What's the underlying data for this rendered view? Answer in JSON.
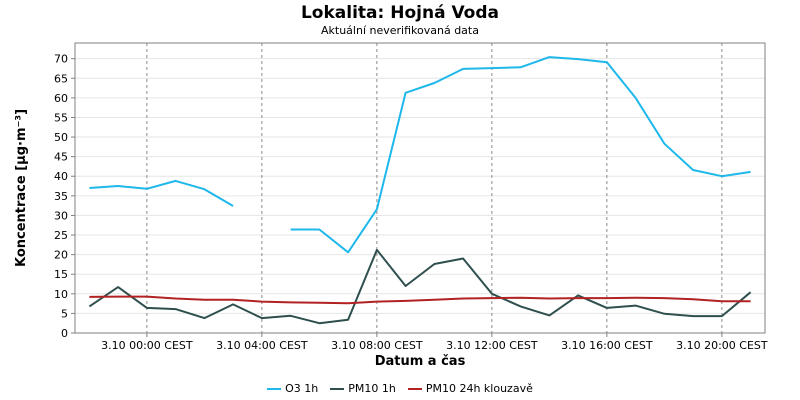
{
  "chart_data": {
    "type": "line",
    "title": "Lokalita: Hojná Voda",
    "subtitle": "Aktuální neverifikovaná data",
    "xlabel": "Datum a čas",
    "ylabel": "Koncentrace [µg·m⁻³]",
    "ylim": [
      0,
      74
    ],
    "yticks": [
      0,
      5,
      10,
      15,
      20,
      25,
      30,
      35,
      40,
      45,
      50,
      55,
      60,
      65,
      70
    ],
    "xlim": [
      -2.5,
      21.5
    ],
    "xticks": [
      {
        "at": 0,
        "label": "3.10 00:00 CEST"
      },
      {
        "at": 4,
        "label": "3.10 04:00 CEST"
      },
      {
        "at": 8,
        "label": "3.10 08:00 CEST"
      },
      {
        "at": 12,
        "label": "3.10 12:00 CEST"
      },
      {
        "at": 16,
        "label": "3.10 16:00 CEST"
      },
      {
        "at": 20,
        "label": "3.10 20:00 CEST"
      }
    ],
    "x": [
      -2,
      -1,
      0,
      1,
      2,
      3,
      4,
      5,
      6,
      7,
      8,
      9,
      10,
      11,
      12,
      13,
      14,
      15,
      16,
      17,
      18,
      19,
      20,
      21
    ],
    "grid": true,
    "legend_position": "bottom",
    "series": [
      {
        "name": "O3 1h",
        "color": "#1eb8ea",
        "values": [
          37.0,
          37.5,
          36.8,
          38.8,
          36.7,
          32.4,
          null,
          26.4,
          26.4,
          20.6,
          31.6,
          61.3,
          63.8,
          67.4,
          67.6,
          67.8,
          70.4,
          69.9,
          69.1,
          60.0,
          48.3,
          41.6,
          40.0,
          41.1
        ]
      },
      {
        "name": "PM10 1h",
        "color": "#2f4f4f",
        "values": [
          6.8,
          11.7,
          6.4,
          6.1,
          3.8,
          7.3,
          3.8,
          4.4,
          2.5,
          3.4,
          21.2,
          12.0,
          17.6,
          19.0,
          10.0,
          6.8,
          4.5,
          9.6,
          6.4,
          7.0,
          4.9,
          4.3,
          4.3,
          10.4
        ]
      },
      {
        "name": "PM10 24h klouzavě",
        "color": "#b22222",
        "values": [
          9.2,
          9.3,
          9.3,
          8.8,
          8.5,
          8.5,
          8.0,
          7.8,
          7.7,
          7.6,
          8.0,
          8.2,
          8.5,
          8.8,
          8.9,
          9.0,
          8.8,
          8.9,
          8.9,
          9.0,
          8.9,
          8.6,
          8.1,
          8.1
        ]
      }
    ]
  }
}
